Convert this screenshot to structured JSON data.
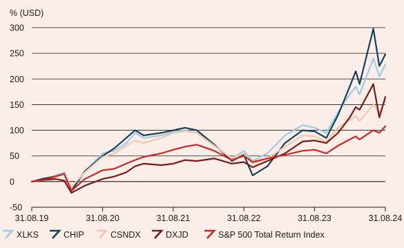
{
  "chart_data": {
    "type": "line",
    "unit_label": "% (USD)",
    "ylim": [
      -50,
      300
    ],
    "y_ticks": [
      -50,
      0,
      50,
      100,
      150,
      200,
      250,
      300
    ],
    "y_tick_labels": [
      "-50",
      "0",
      "50",
      "100",
      "150",
      "200",
      "250",
      "300"
    ],
    "x_range": [
      "2019-08-31",
      "2024-08-31"
    ],
    "x_ticks": [
      "2019-08-31",
      "2020-08-31",
      "2021-08-31",
      "2022-08-31",
      "2023-08-31",
      "2024-08-31"
    ],
    "x_tick_labels": [
      "31.08.19",
      "31.08.20",
      "31.08.21",
      "31.08.22",
      "31.08.23",
      "31.08.24"
    ],
    "grid": "horizontal",
    "legend_position": "bottom",
    "series": [
      {
        "name": "XLKS",
        "color": "#9ecbe6",
        "points": [
          [
            "2019-08-31",
            0
          ],
          [
            "2019-10-31",
            4
          ],
          [
            "2019-12-31",
            12
          ],
          [
            "2020-02-15",
            18
          ],
          [
            "2020-03-23",
            -12
          ],
          [
            "2020-05-31",
            20
          ],
          [
            "2020-08-31",
            55
          ],
          [
            "2020-10-31",
            60
          ],
          [
            "2020-12-31",
            75
          ],
          [
            "2021-02-15",
            95
          ],
          [
            "2021-03-31",
            85
          ],
          [
            "2021-06-30",
            90
          ],
          [
            "2021-08-31",
            97
          ],
          [
            "2021-10-31",
            100
          ],
          [
            "2021-12-31",
            95
          ],
          [
            "2022-03-31",
            70
          ],
          [
            "2022-06-30",
            45
          ],
          [
            "2022-08-31",
            60
          ],
          [
            "2022-10-15",
            40
          ],
          [
            "2022-12-31",
            55
          ],
          [
            "2023-03-31",
            90
          ],
          [
            "2023-06-30",
            110
          ],
          [
            "2023-08-31",
            105
          ],
          [
            "2023-10-31",
            95
          ],
          [
            "2023-12-31",
            135
          ],
          [
            "2024-02-29",
            170
          ],
          [
            "2024-03-31",
            185
          ],
          [
            "2024-04-20",
            170
          ],
          [
            "2024-06-30",
            240
          ],
          [
            "2024-07-31",
            205
          ],
          [
            "2024-08-31",
            228
          ]
        ]
      },
      {
        "name": "CHIP",
        "color": "#123f5c",
        "points": [
          [
            "2019-08-31",
            0
          ],
          [
            "2019-10-31",
            6
          ],
          [
            "2019-12-31",
            10
          ],
          [
            "2020-02-15",
            15
          ],
          [
            "2020-03-23",
            -18
          ],
          [
            "2020-05-31",
            20
          ],
          [
            "2020-08-31",
            50
          ],
          [
            "2020-10-31",
            65
          ],
          [
            "2020-12-31",
            85
          ],
          [
            "2021-02-15",
            100
          ],
          [
            "2021-03-31",
            90
          ],
          [
            "2021-06-30",
            95
          ],
          [
            "2021-08-31",
            100
          ],
          [
            "2021-10-31",
            105
          ],
          [
            "2021-12-31",
            100
          ],
          [
            "2022-03-31",
            72
          ],
          [
            "2022-06-30",
            40
          ],
          [
            "2022-08-31",
            52
          ],
          [
            "2022-10-15",
            12
          ],
          [
            "2022-12-31",
            30
          ],
          [
            "2023-03-31",
            75
          ],
          [
            "2023-06-30",
            100
          ],
          [
            "2023-08-31",
            98
          ],
          [
            "2023-10-31",
            85
          ],
          [
            "2023-12-31",
            130
          ],
          [
            "2024-02-29",
            185
          ],
          [
            "2024-03-31",
            215
          ],
          [
            "2024-04-20",
            190
          ],
          [
            "2024-06-30",
            298
          ],
          [
            "2024-07-31",
            225
          ],
          [
            "2024-08-31",
            248
          ]
        ]
      },
      {
        "name": "CSNDX",
        "color": "#f3c6ae",
        "points": [
          [
            "2019-08-31",
            0
          ],
          [
            "2019-10-31",
            3
          ],
          [
            "2019-12-31",
            8
          ],
          [
            "2020-02-15",
            15
          ],
          [
            "2020-03-23",
            -10
          ],
          [
            "2020-05-31",
            18
          ],
          [
            "2020-08-31",
            48
          ],
          [
            "2020-10-31",
            55
          ],
          [
            "2020-12-31",
            70
          ],
          [
            "2021-02-15",
            80
          ],
          [
            "2021-03-31",
            75
          ],
          [
            "2021-06-30",
            85
          ],
          [
            "2021-08-31",
            95
          ],
          [
            "2021-10-31",
            98
          ],
          [
            "2021-12-31",
            95
          ],
          [
            "2022-03-31",
            70
          ],
          [
            "2022-06-30",
            45
          ],
          [
            "2022-08-31",
            55
          ],
          [
            "2022-10-15",
            35
          ],
          [
            "2022-12-31",
            45
          ],
          [
            "2023-03-31",
            68
          ],
          [
            "2023-06-30",
            90
          ],
          [
            "2023-08-31",
            88
          ],
          [
            "2023-10-31",
            78
          ],
          [
            "2023-12-31",
            105
          ],
          [
            "2024-02-29",
            120
          ],
          [
            "2024-03-31",
            128
          ],
          [
            "2024-04-20",
            118
          ],
          [
            "2024-06-30",
            150
          ],
          [
            "2024-07-31",
            135
          ],
          [
            "2024-08-31",
            158
          ]
        ]
      },
      {
        "name": "DXJD",
        "color": "#7a1717",
        "points": [
          [
            "2019-08-31",
            0
          ],
          [
            "2019-10-31",
            3
          ],
          [
            "2019-12-31",
            5
          ],
          [
            "2020-02-15",
            2
          ],
          [
            "2020-03-23",
            -22
          ],
          [
            "2020-05-31",
            -8
          ],
          [
            "2020-08-31",
            5
          ],
          [
            "2020-10-31",
            10
          ],
          [
            "2020-12-31",
            18
          ],
          [
            "2021-02-15",
            30
          ],
          [
            "2021-03-31",
            35
          ],
          [
            "2021-06-30",
            32
          ],
          [
            "2021-08-31",
            35
          ],
          [
            "2021-10-31",
            42
          ],
          [
            "2021-12-31",
            40
          ],
          [
            "2022-03-31",
            45
          ],
          [
            "2022-06-30",
            35
          ],
          [
            "2022-08-31",
            38
          ],
          [
            "2022-10-15",
            28
          ],
          [
            "2022-12-31",
            40
          ],
          [
            "2023-03-31",
            55
          ],
          [
            "2023-06-30",
            78
          ],
          [
            "2023-08-31",
            80
          ],
          [
            "2023-10-31",
            75
          ],
          [
            "2023-12-31",
            95
          ],
          [
            "2024-02-29",
            125
          ],
          [
            "2024-03-31",
            145
          ],
          [
            "2024-04-20",
            140
          ],
          [
            "2024-06-30",
            190
          ],
          [
            "2024-07-31",
            125
          ],
          [
            "2024-08-31",
            165
          ]
        ]
      },
      {
        "name": "S&P 500 Total Return Index",
        "color": "#c8281e",
        "points": [
          [
            "2019-08-31",
            0
          ],
          [
            "2019-10-31",
            3
          ],
          [
            "2019-12-31",
            10
          ],
          [
            "2020-02-15",
            15
          ],
          [
            "2020-03-23",
            -18
          ],
          [
            "2020-05-31",
            5
          ],
          [
            "2020-08-31",
            22
          ],
          [
            "2020-10-31",
            25
          ],
          [
            "2020-12-31",
            35
          ],
          [
            "2021-02-15",
            42
          ],
          [
            "2021-03-31",
            48
          ],
          [
            "2021-06-30",
            55
          ],
          [
            "2021-08-31",
            62
          ],
          [
            "2021-10-31",
            68
          ],
          [
            "2021-12-31",
            72
          ],
          [
            "2022-03-31",
            60
          ],
          [
            "2022-06-30",
            42
          ],
          [
            "2022-08-31",
            50
          ],
          [
            "2022-10-15",
            38
          ],
          [
            "2022-12-31",
            45
          ],
          [
            "2023-03-31",
            52
          ],
          [
            "2023-06-30",
            60
          ],
          [
            "2023-08-31",
            62
          ],
          [
            "2023-10-31",
            55
          ],
          [
            "2023-12-31",
            70
          ],
          [
            "2024-02-29",
            82
          ],
          [
            "2024-03-31",
            88
          ],
          [
            "2024-04-20",
            82
          ],
          [
            "2024-06-30",
            100
          ],
          [
            "2024-07-31",
            95
          ],
          [
            "2024-08-31",
            108
          ]
        ]
      }
    ]
  }
}
